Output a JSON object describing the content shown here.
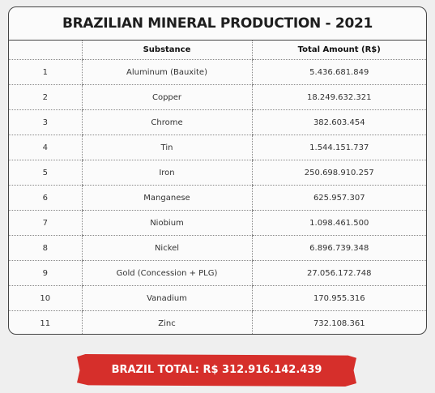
{
  "header": {
    "title": "BRAZILIAN MINERAL PRODUCTION - 2021"
  },
  "table": {
    "columns": [
      "Substance",
      "Total Amount (R$)"
    ],
    "rows": [
      [
        "1",
        "Aluminum (Bauxite)",
        "5.436.681.849"
      ],
      [
        "2",
        "Copper",
        "18.249.632.321"
      ],
      [
        "3",
        "Chrome",
        "382.603.454"
      ],
      [
        "4",
        "Tin",
        "1.544.151.737"
      ],
      [
        "5",
        "Iron",
        "250.698.910.257"
      ],
      [
        "6",
        "Manganese",
        "625.957.307"
      ],
      [
        "7",
        "Niobium",
        "1.098.461.500"
      ],
      [
        "8",
        "Nickel",
        "6.896.739.348"
      ],
      [
        "9",
        "Gold (Concession + PLG)",
        "27.056.172.748"
      ],
      [
        "10",
        "Vanadium",
        "170.955.316"
      ],
      [
        "11",
        "Zinc",
        "732.108.361"
      ]
    ]
  },
  "footer": {
    "total": "BRAZIL TOTAL: R$ 312.916.142.439"
  }
}
